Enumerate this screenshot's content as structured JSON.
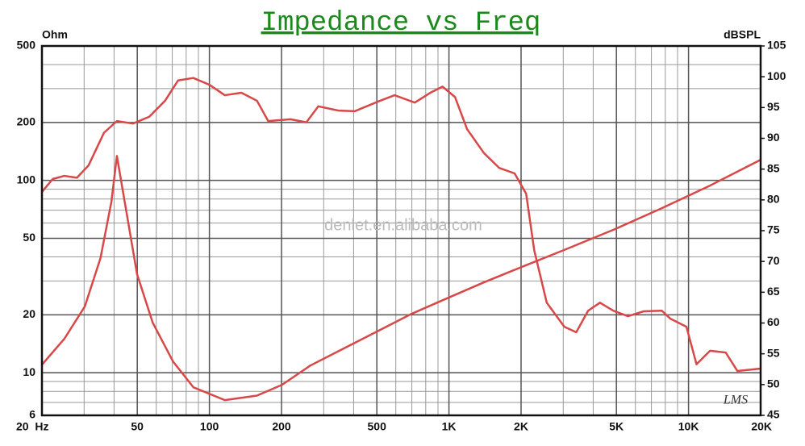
{
  "chart_data": {
    "type": "line",
    "title": "Impedance vs Freq",
    "y_label": "Ohm",
    "y2_label": "dBSPL",
    "watermark": "denlet.en.alibaba.com",
    "signature": "LMS",
    "x_log": true,
    "y_log": true,
    "grid": true,
    "xlim": [
      20,
      20000
    ],
    "xticks": [
      {
        "value": 20,
        "label": "20  Hz"
      },
      50,
      100,
      200,
      500,
      {
        "value": 1000,
        "label": "1K"
      },
      {
        "value": 2000,
        "label": "2K"
      },
      {
        "value": 5000,
        "label": "5K"
      },
      {
        "value": 10000,
        "label": "10K"
      },
      {
        "value": 20000,
        "label": "20K"
      }
    ],
    "ylim": [
      6,
      500
    ],
    "yticks": [
      6,
      10,
      20,
      50,
      100,
      200,
      500
    ],
    "y2lim": [
      45,
      105
    ],
    "y2ticks": [
      45,
      50,
      55,
      60,
      65,
      70,
      75,
      80,
      85,
      90,
      95,
      100,
      105
    ],
    "series": [
      {
        "name": "Impedance",
        "color": "#d84848",
        "axis": "y",
        "x": [
          20,
          24.8,
          30.2,
          35.1,
          39,
          41.1,
          44.3,
          49.9,
          58,
          70.6,
          85.7,
          116,
          158,
          201,
          264,
          374,
          551,
          690,
          940,
          1400,
          2050,
          3030,
          4850,
          7740,
          12300,
          20000
        ],
        "values": [
          11,
          15,
          22.1,
          39.4,
          77.5,
          134,
          77.5,
          32.5,
          18.2,
          11.4,
          8.4,
          7.2,
          7.6,
          8.65,
          10.9,
          13.6,
          17.4,
          20.1,
          23.8,
          29.5,
          35.8,
          43.5,
          55.3,
          71.7,
          94,
          128
        ]
      },
      {
        "name": "SPL",
        "color": "#d84848",
        "axis": "y2",
        "x": [
          20,
          22.2,
          24.8,
          28,
          31.3,
          36.3,
          41.1,
          48,
          56.1,
          65.3,
          74,
          85.7,
          100,
          116,
          136,
          158,
          176,
          218,
          254,
          285,
          346,
          404,
          508,
          593,
          720,
          836,
          940,
          1060,
          1190,
          1400,
          1620,
          1880,
          2100,
          2270,
          2560,
          3030,
          3400,
          3810,
          4270,
          4850,
          5590,
          6500,
          7740,
          8400,
          9800,
          10800,
          12300,
          14300,
          16000,
          20000
        ],
        "values": [
          81.3,
          83.4,
          83.9,
          83.6,
          85.6,
          90.9,
          92.8,
          92.4,
          93.5,
          96.1,
          99.4,
          99.8,
          98.7,
          97,
          97.4,
          96.1,
          92.8,
          93.1,
          92.6,
          95.2,
          94.5,
          94.4,
          96,
          97,
          95.8,
          97.4,
          98.4,
          96.7,
          91.5,
          87.6,
          85.2,
          84.3,
          81,
          71.8,
          63.3,
          59.4,
          58.5,
          62,
          63.3,
          62,
          61.1,
          61.9,
          62,
          60.7,
          59.4,
          53.3,
          55.5,
          55.2,
          52.2,
          52.6
        ]
      }
    ]
  }
}
